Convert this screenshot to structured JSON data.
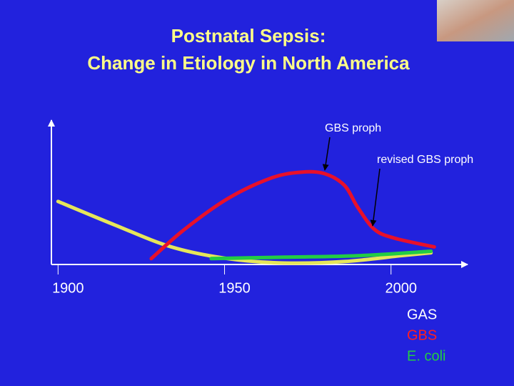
{
  "chart_data": {
    "type": "line",
    "title": [
      "Postnatal Sepsis:",
      "Change in Etiology in North America"
    ],
    "xlim": [
      1898,
      2023
    ],
    "ylim": [
      0,
      100
    ],
    "xticks": [
      1900,
      1950,
      2000
    ],
    "series": [
      {
        "name": "GAS",
        "color": "#e6e65a",
        "label_color": "#ffffff",
        "x": [
          1900,
          1917,
          1934,
          1951,
          1968,
          1986,
          2003,
          2012
        ],
        "values": [
          43,
          27,
          12,
          4,
          1,
          2,
          6,
          8
        ]
      },
      {
        "name": "E. coli",
        "color": "#22cc44",
        "label_color": "#22cc44",
        "x": [
          1946,
          1968,
          1990,
          2012
        ],
        "values": [
          4,
          5,
          6,
          9
        ]
      },
      {
        "name": "GBS",
        "color": "#e8102a",
        "label_color": "#ff2020",
        "x": [
          1928,
          1938,
          1951,
          1964,
          1973,
          1980,
          1986,
          1990,
          1995,
          2001,
          2013
        ],
        "values": [
          4,
          24,
          45,
          59,
          63,
          62,
          54,
          39,
          24,
          18,
          12
        ]
      }
    ],
    "annotations": [
      "GBS proph",
      "revised GBS proph"
    ]
  }
}
